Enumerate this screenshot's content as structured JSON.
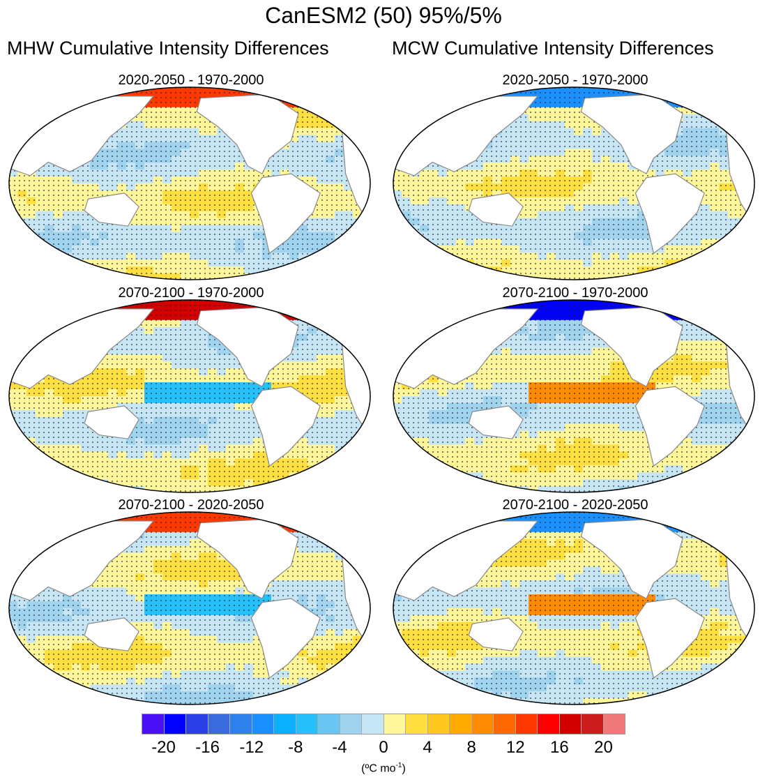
{
  "title": "CanESM2 (50) 95%/5%",
  "columns": [
    "MHW Cumulative Intensity Differences",
    "MCW Cumulative Intensity Differences"
  ],
  "chart_data": {
    "type": "heatmap",
    "title": "CanESM2 (50) 95%/5%",
    "panels": [
      {
        "column": "MHW Cumulative Intensity Differences",
        "title": "2020-2050 - 1970-2000",
        "polar_sign": "positive"
      },
      {
        "column": "MCW Cumulative Intensity Differences",
        "title": "2020-2050 - 1970-2000",
        "polar_sign": "negative"
      },
      {
        "column": "MHW Cumulative Intensity Differences",
        "title": "2070-2100 - 1970-2000",
        "polar_sign": "positive"
      },
      {
        "column": "MCW Cumulative Intensity Differences",
        "title": "2070-2100 - 1970-2000",
        "polar_sign": "negative"
      },
      {
        "column": "MHW Cumulative Intensity Differences",
        "title": "2070-2100 - 2020-2050",
        "polar_sign": "positive"
      },
      {
        "column": "MCW Cumulative Intensity Differences",
        "title": "2070-2100 - 2020-2050",
        "polar_sign": "negative"
      }
    ],
    "projection": "Robinson, Pacific-centered",
    "stippling": true,
    "colorbar": {
      "tick_labels": [
        "-20",
        "-16",
        "-12",
        "-8",
        "-4",
        "0",
        "4",
        "8",
        "12",
        "16",
        "20"
      ],
      "tick_values": [
        -20,
        -16,
        -12,
        -8,
        -4,
        0,
        4,
        8,
        12,
        16,
        20
      ],
      "level_step": 2,
      "units": "(ºC mo",
      "units_sup": "-1",
      "units_end": ")",
      "colors": [
        "#4A10F5",
        "#0000FF",
        "#2A40E6",
        "#3A6ADB",
        "#2F80EA",
        "#1A90FF",
        "#0AAFFF",
        "#26C0FA",
        "#6AC6F0",
        "#A0D4EE",
        "#C6E6F5",
        "#FFF79A",
        "#FFE040",
        "#FFC820",
        "#FFAA00",
        "#FF8C00",
        "#FF6A00",
        "#FF3800",
        "#FF0000",
        "#D40000",
        "#CC1C1C",
        "#F07878"
      ]
    }
  }
}
